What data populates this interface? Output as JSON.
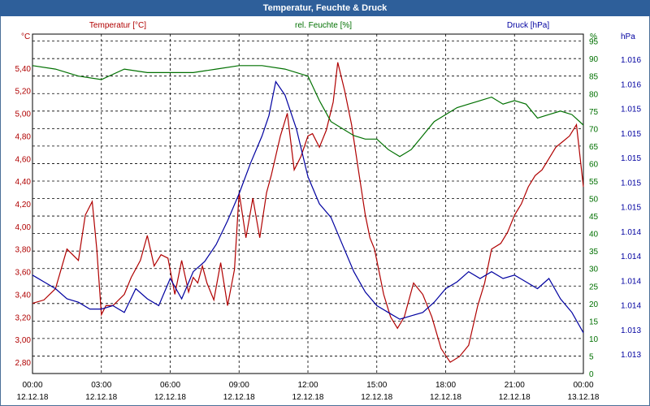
{
  "window": {
    "title": "Temperatur, Feuchte & Druck"
  },
  "colors": {
    "temperature": "#b00000",
    "humidity": "#007000",
    "pressure": "#0000a0",
    "grid": "#000000",
    "titlebar": "#2e5f9a"
  },
  "chart_data": {
    "type": "line",
    "title": "Temperatur, Feuchte & Druck",
    "grid": true,
    "x_ticks": [
      {
        "time": "00:00",
        "date": "12.12.18"
      },
      {
        "time": "03:00",
        "date": "12.12.18"
      },
      {
        "time": "06:00",
        "date": "12.12.18"
      },
      {
        "time": "09:00",
        "date": "12.12.18"
      },
      {
        "time": "12:00",
        "date": "12.12.18"
      },
      {
        "time": "15:00",
        "date": "12.12.18"
      },
      {
        "time": "18:00",
        "date": "12.12.18"
      },
      {
        "time": "21:00",
        "date": "12.12.18"
      },
      {
        "time": "00:00",
        "date": "13.12.18"
      }
    ],
    "xlim_hours": [
      0,
      24
    ],
    "axes": {
      "temperature": {
        "label": "Temperatur [°C]",
        "unit": "°C",
        "ylim": [
          2.7,
          5.7
        ],
        "ticks": [
          "2,80",
          "3,00",
          "3,20",
          "3,40",
          "3,60",
          "3,80",
          "4,00",
          "4,20",
          "4,40",
          "4,60",
          "4,80",
          "5,00",
          "5,20",
          "5,40"
        ],
        "tick_values": [
          2.8,
          3.0,
          3.2,
          3.4,
          3.6,
          3.8,
          4.0,
          4.2,
          4.4,
          4.6,
          4.8,
          5.0,
          5.2,
          5.4
        ]
      },
      "humidity": {
        "label": "rel. Feuchte [%]",
        "unit": "%",
        "ylim": [
          0,
          97
        ],
        "ticks": [
          "0",
          "5",
          "10",
          "15",
          "20",
          "25",
          "30",
          "35",
          "40",
          "45",
          "50",
          "55",
          "60",
          "65",
          "70",
          "75",
          "80",
          "85",
          "90",
          "95"
        ],
        "tick_values": [
          0,
          5,
          10,
          15,
          20,
          25,
          30,
          35,
          40,
          45,
          50,
          55,
          60,
          65,
          70,
          75,
          80,
          85,
          90,
          95
        ]
      },
      "pressure": {
        "label": "Druck [hPa]",
        "unit": "hPa",
        "ticks": [
          "1.013",
          "1.013",
          "1.014",
          "1.014",
          "1.014",
          "1.014",
          "1.015",
          "1.015",
          "1.015",
          "1.015",
          "1.015",
          "1.016",
          "1.016"
        ]
      }
    },
    "series": [
      {
        "name": "Temperatur [°C]",
        "axis": "temperature",
        "x": [
          0,
          0.5,
          1,
          1.5,
          2,
          2.3,
          2.6,
          2.8,
          3,
          3.2,
          3.5,
          4,
          4.3,
          4.7,
          5,
          5.3,
          5.6,
          5.9,
          6.2,
          6.5,
          6.8,
          7,
          7.2,
          7.4,
          7.6,
          7.9,
          8.2,
          8.5,
          8.8,
          9,
          9.3,
          9.6,
          9.9,
          10.2,
          10.4,
          10.8,
          11.1,
          11.4,
          11.7,
          12,
          12.2,
          12.5,
          12.8,
          13.1,
          13.3,
          13.6,
          13.9,
          14.2,
          14.5,
          14.7,
          14.9,
          15.1,
          15.3,
          15.6,
          15.9,
          16.2,
          16.6,
          17,
          17.4,
          17.8,
          18.2,
          18.6,
          19,
          19.4,
          19.7,
          20,
          20.4,
          20.7,
          21,
          21.3,
          21.6,
          21.9,
          22.2,
          22.5,
          22.8,
          23.1,
          23.4,
          23.7,
          24
        ],
        "values": [
          3.32,
          3.35,
          3.45,
          3.8,
          3.7,
          4.1,
          4.22,
          3.8,
          3.22,
          3.3,
          3.3,
          3.4,
          3.55,
          3.7,
          3.92,
          3.65,
          3.75,
          3.72,
          3.4,
          3.7,
          3.42,
          3.55,
          3.5,
          3.65,
          3.5,
          3.35,
          3.68,
          3.3,
          3.62,
          4.3,
          3.9,
          4.25,
          3.9,
          4.3,
          4.45,
          4.8,
          5.0,
          4.5,
          4.62,
          4.8,
          4.82,
          4.7,
          4.85,
          5.1,
          5.45,
          5.2,
          4.9,
          4.5,
          4.1,
          3.9,
          3.8,
          3.6,
          3.4,
          3.2,
          3.1,
          3.2,
          3.5,
          3.4,
          3.2,
          2.92,
          2.8,
          2.85,
          2.95,
          3.3,
          3.5,
          3.8,
          3.85,
          3.95,
          4.1,
          4.2,
          4.35,
          4.45,
          4.5,
          4.6,
          4.7,
          4.75,
          4.8,
          4.9,
          4.35
        ]
      },
      {
        "name": "rel. Feuchte [%]",
        "axis": "humidity",
        "x": [
          0,
          1,
          2,
          3,
          4,
          5,
          6,
          7,
          8,
          9,
          10,
          11,
          12,
          12.5,
          13,
          13.5,
          14,
          14.5,
          15,
          15.5,
          16,
          16.5,
          17,
          17.5,
          18,
          18.5,
          19,
          19.5,
          20,
          20.5,
          21,
          21.5,
          22,
          22.5,
          23,
          23.5,
          24
        ],
        "values": [
          88,
          87,
          85,
          84,
          87,
          86,
          86,
          86,
          87,
          88,
          88,
          87,
          85,
          78,
          72,
          70,
          68,
          67,
          67,
          64,
          62,
          64,
          68,
          72,
          74,
          76,
          77,
          78,
          79,
          77,
          78,
          77,
          73,
          74,
          75,
          74,
          71
        ]
      },
      {
        "name": "Druck [hPa]",
        "axis": "pressure",
        "x": [
          0,
          0.5,
          1,
          1.5,
          2,
          2.5,
          3,
          3.5,
          4,
          4.5,
          5,
          5.5,
          6,
          6.5,
          7,
          7.5,
          8,
          8.5,
          9,
          9.5,
          10,
          10.3,
          10.6,
          11,
          11.5,
          12,
          12.5,
          13,
          13.5,
          14,
          14.5,
          15,
          15.5,
          16,
          16.5,
          17,
          17.5,
          18,
          18.5,
          19,
          19.5,
          20,
          20.5,
          21,
          21.5,
          22,
          22.5,
          23,
          23.5,
          24
        ],
        "values": [
          0.29,
          0.27,
          0.25,
          0.22,
          0.21,
          0.19,
          0.19,
          0.2,
          0.18,
          0.25,
          0.22,
          0.2,
          0.28,
          0.22,
          0.3,
          0.33,
          0.38,
          0.45,
          0.53,
          0.62,
          0.7,
          0.76,
          0.86,
          0.82,
          0.72,
          0.58,
          0.5,
          0.46,
          0.38,
          0.3,
          0.24,
          0.2,
          0.18,
          0.16,
          0.17,
          0.18,
          0.21,
          0.25,
          0.27,
          0.3,
          0.28,
          0.3,
          0.28,
          0.29,
          0.27,
          0.25,
          0.28,
          0.22,
          0.18,
          0.12
        ]
      }
    ]
  }
}
